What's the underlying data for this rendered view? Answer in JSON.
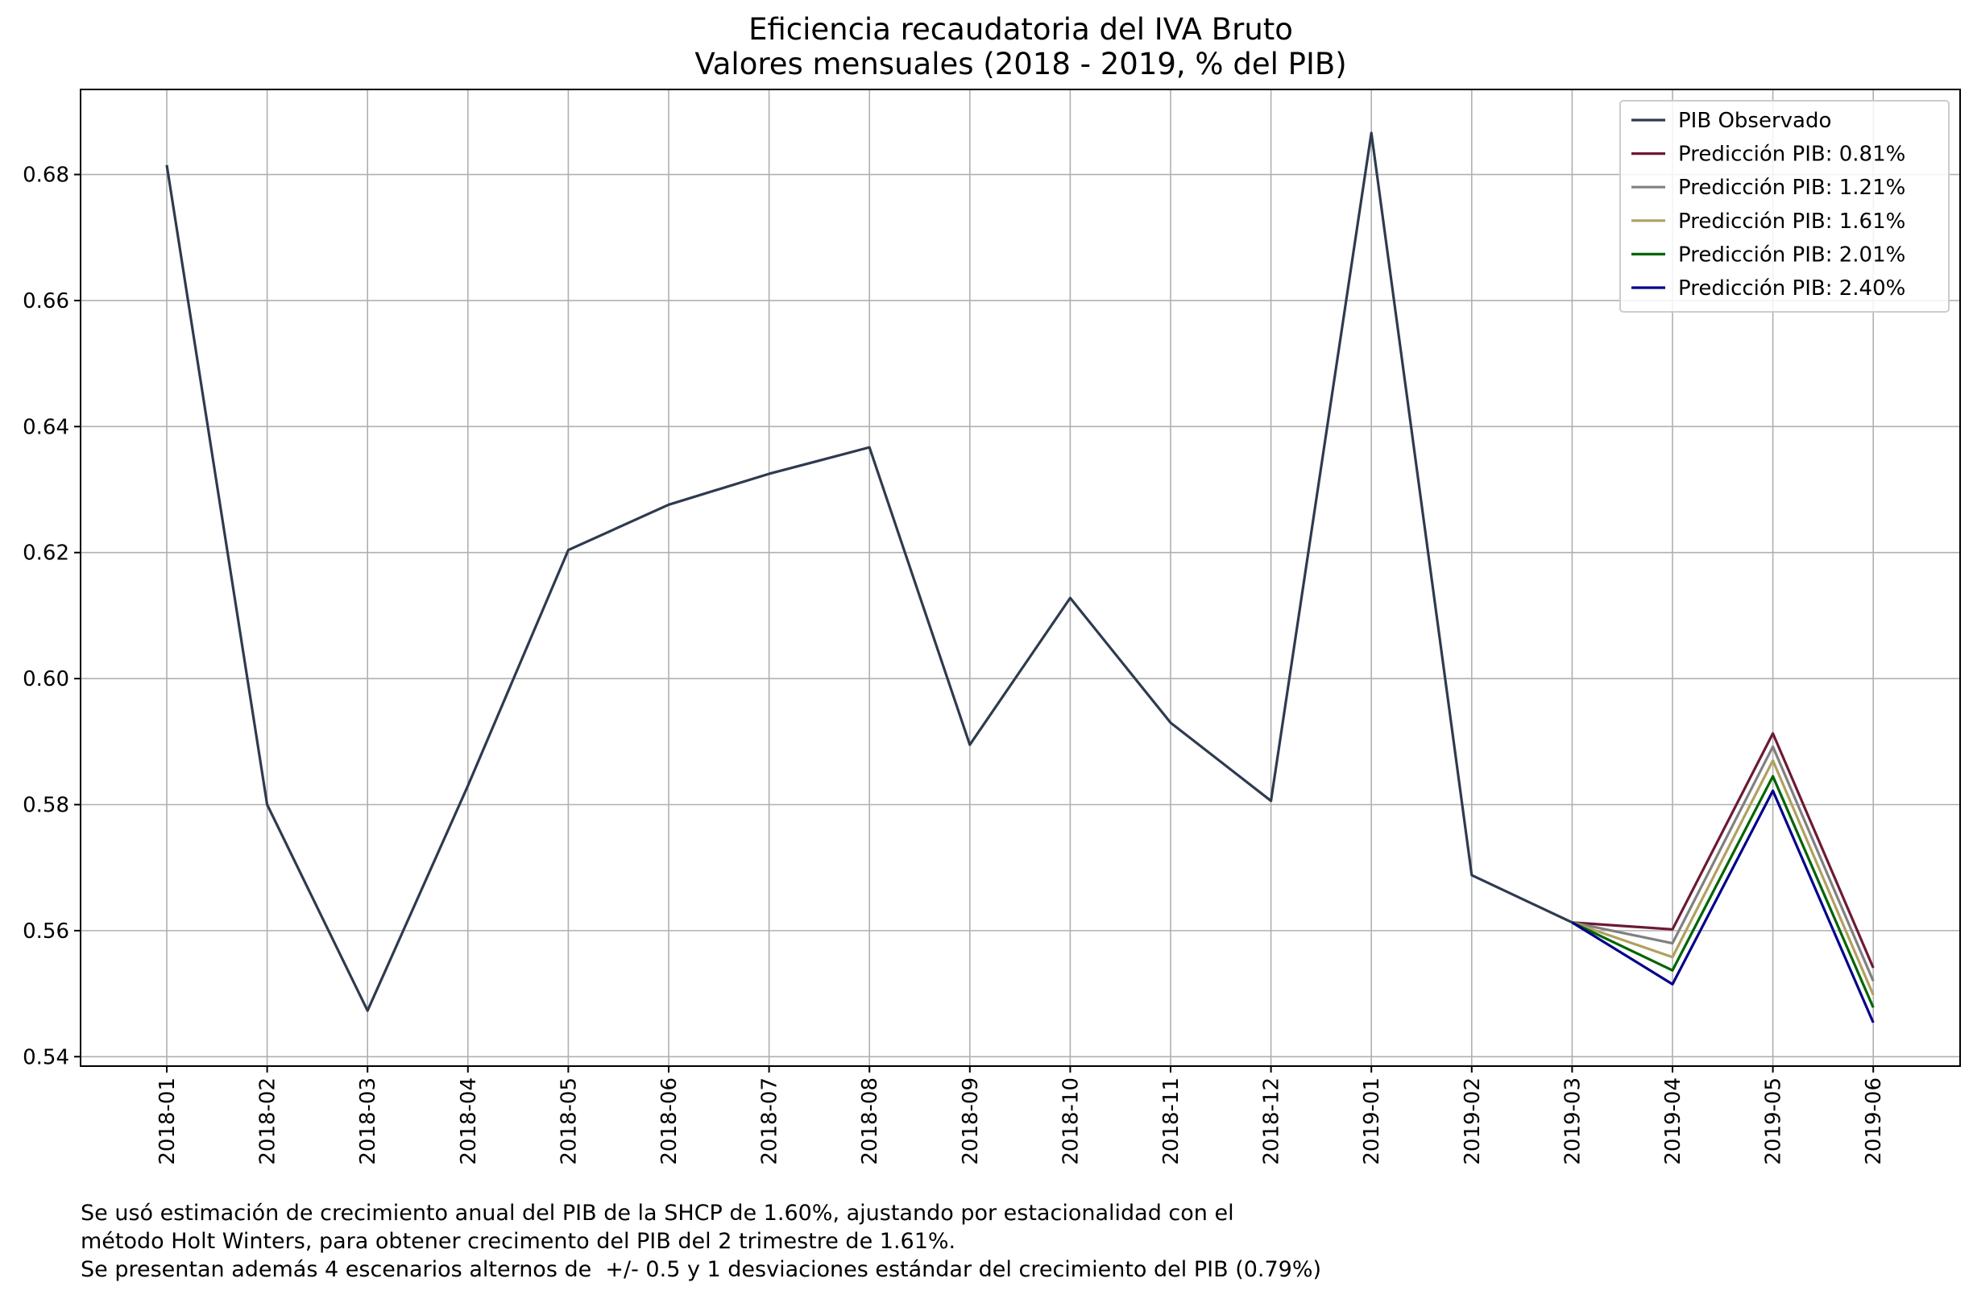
{
  "chart_data": {
    "type": "line",
    "title": "Eficiencia recaudatoria del IVA Bruto",
    "subtitle": "Valores mensuales (2018 - 2019, % del PIB)",
    "xlabel": "",
    "ylabel": "",
    "categories": [
      "2018-01",
      "2018-02",
      "2018-03",
      "2018-04",
      "2018-05",
      "2018-06",
      "2018-07",
      "2018-08",
      "2018-09",
      "2018-10",
      "2018-11",
      "2018-12",
      "2019-01",
      "2019-02",
      "2019-03",
      "2019-04",
      "2019-05",
      "2019-06"
    ],
    "y_ticks": [
      0.54,
      0.56,
      0.58,
      0.6,
      0.62,
      0.64,
      0.66,
      0.68
    ],
    "y_tick_labels": [
      "0.54",
      "0.56",
      "0.58",
      "0.60",
      "0.62",
      "0.64",
      "0.66",
      "0.68"
    ],
    "ylim": [
      0.5385,
      0.6935
    ],
    "grid": true,
    "legend_position": "top-right",
    "series": [
      {
        "name": "PIB Observado",
        "color": "#2e3a4f",
        "x": [
          "2018-01",
          "2018-02",
          "2018-03",
          "2018-04",
          "2018-05",
          "2018-06",
          "2018-07",
          "2018-08",
          "2018-09",
          "2018-10",
          "2018-11",
          "2018-12",
          "2019-01",
          "2019-02",
          "2019-03"
        ],
        "values": [
          0.6815,
          0.58,
          0.5473,
          0.583,
          0.6204,
          0.6276,
          0.6325,
          0.6367,
          0.5895,
          0.6128,
          0.593,
          0.5806,
          0.6866,
          0.5688,
          0.5613
        ]
      },
      {
        "name": "Predicción PIB: 0.81%",
        "color": "#6b1a33",
        "x": [
          "2019-03",
          "2019-04",
          "2019-05",
          "2019-06"
        ],
        "values": [
          0.5613,
          0.5602,
          0.5913,
          0.5541
        ]
      },
      {
        "name": "Predicción PIB: 1.21%",
        "color": "#808080",
        "x": [
          "2019-03",
          "2019-04",
          "2019-05",
          "2019-06"
        ],
        "values": [
          0.5613,
          0.558,
          0.5892,
          0.552
        ]
      },
      {
        "name": "Predicción PIB: 1.61%",
        "color": "#b0a060",
        "x": [
          "2019-03",
          "2019-04",
          "2019-05",
          "2019-06"
        ],
        "values": [
          0.5613,
          0.5558,
          0.587,
          0.5498
        ]
      },
      {
        "name": "Predicción PIB: 2.01%",
        "color": "#006400",
        "x": [
          "2019-03",
          "2019-04",
          "2019-05",
          "2019-06"
        ],
        "values": [
          0.5613,
          0.5537,
          0.5845,
          0.5478
        ]
      },
      {
        "name": "Predicción PIB: 2.40%",
        "color": "#00008b",
        "x": [
          "2019-03",
          "2019-04",
          "2019-05",
          "2019-06"
        ],
        "values": [
          0.5613,
          0.5515,
          0.5822,
          0.5454
        ]
      }
    ]
  },
  "footnote": {
    "line1": "Se usó estimación de crecimiento anual del PIB de la SHCP de 1.60%, ajustando por estacionalidad con el",
    "line2": "método Holt Winters, para obtener crecimento del PIB del 2 trimestre de 1.61%.",
    "line3": "Se presentan además 4 escenarios alternos de  +/- 0.5 y 1 desviaciones estándar del crecimiento del PIB (0.79%)"
  },
  "colors": {
    "grid": "#b0b0b0",
    "axes": "#000000",
    "background": "#ffffff"
  }
}
